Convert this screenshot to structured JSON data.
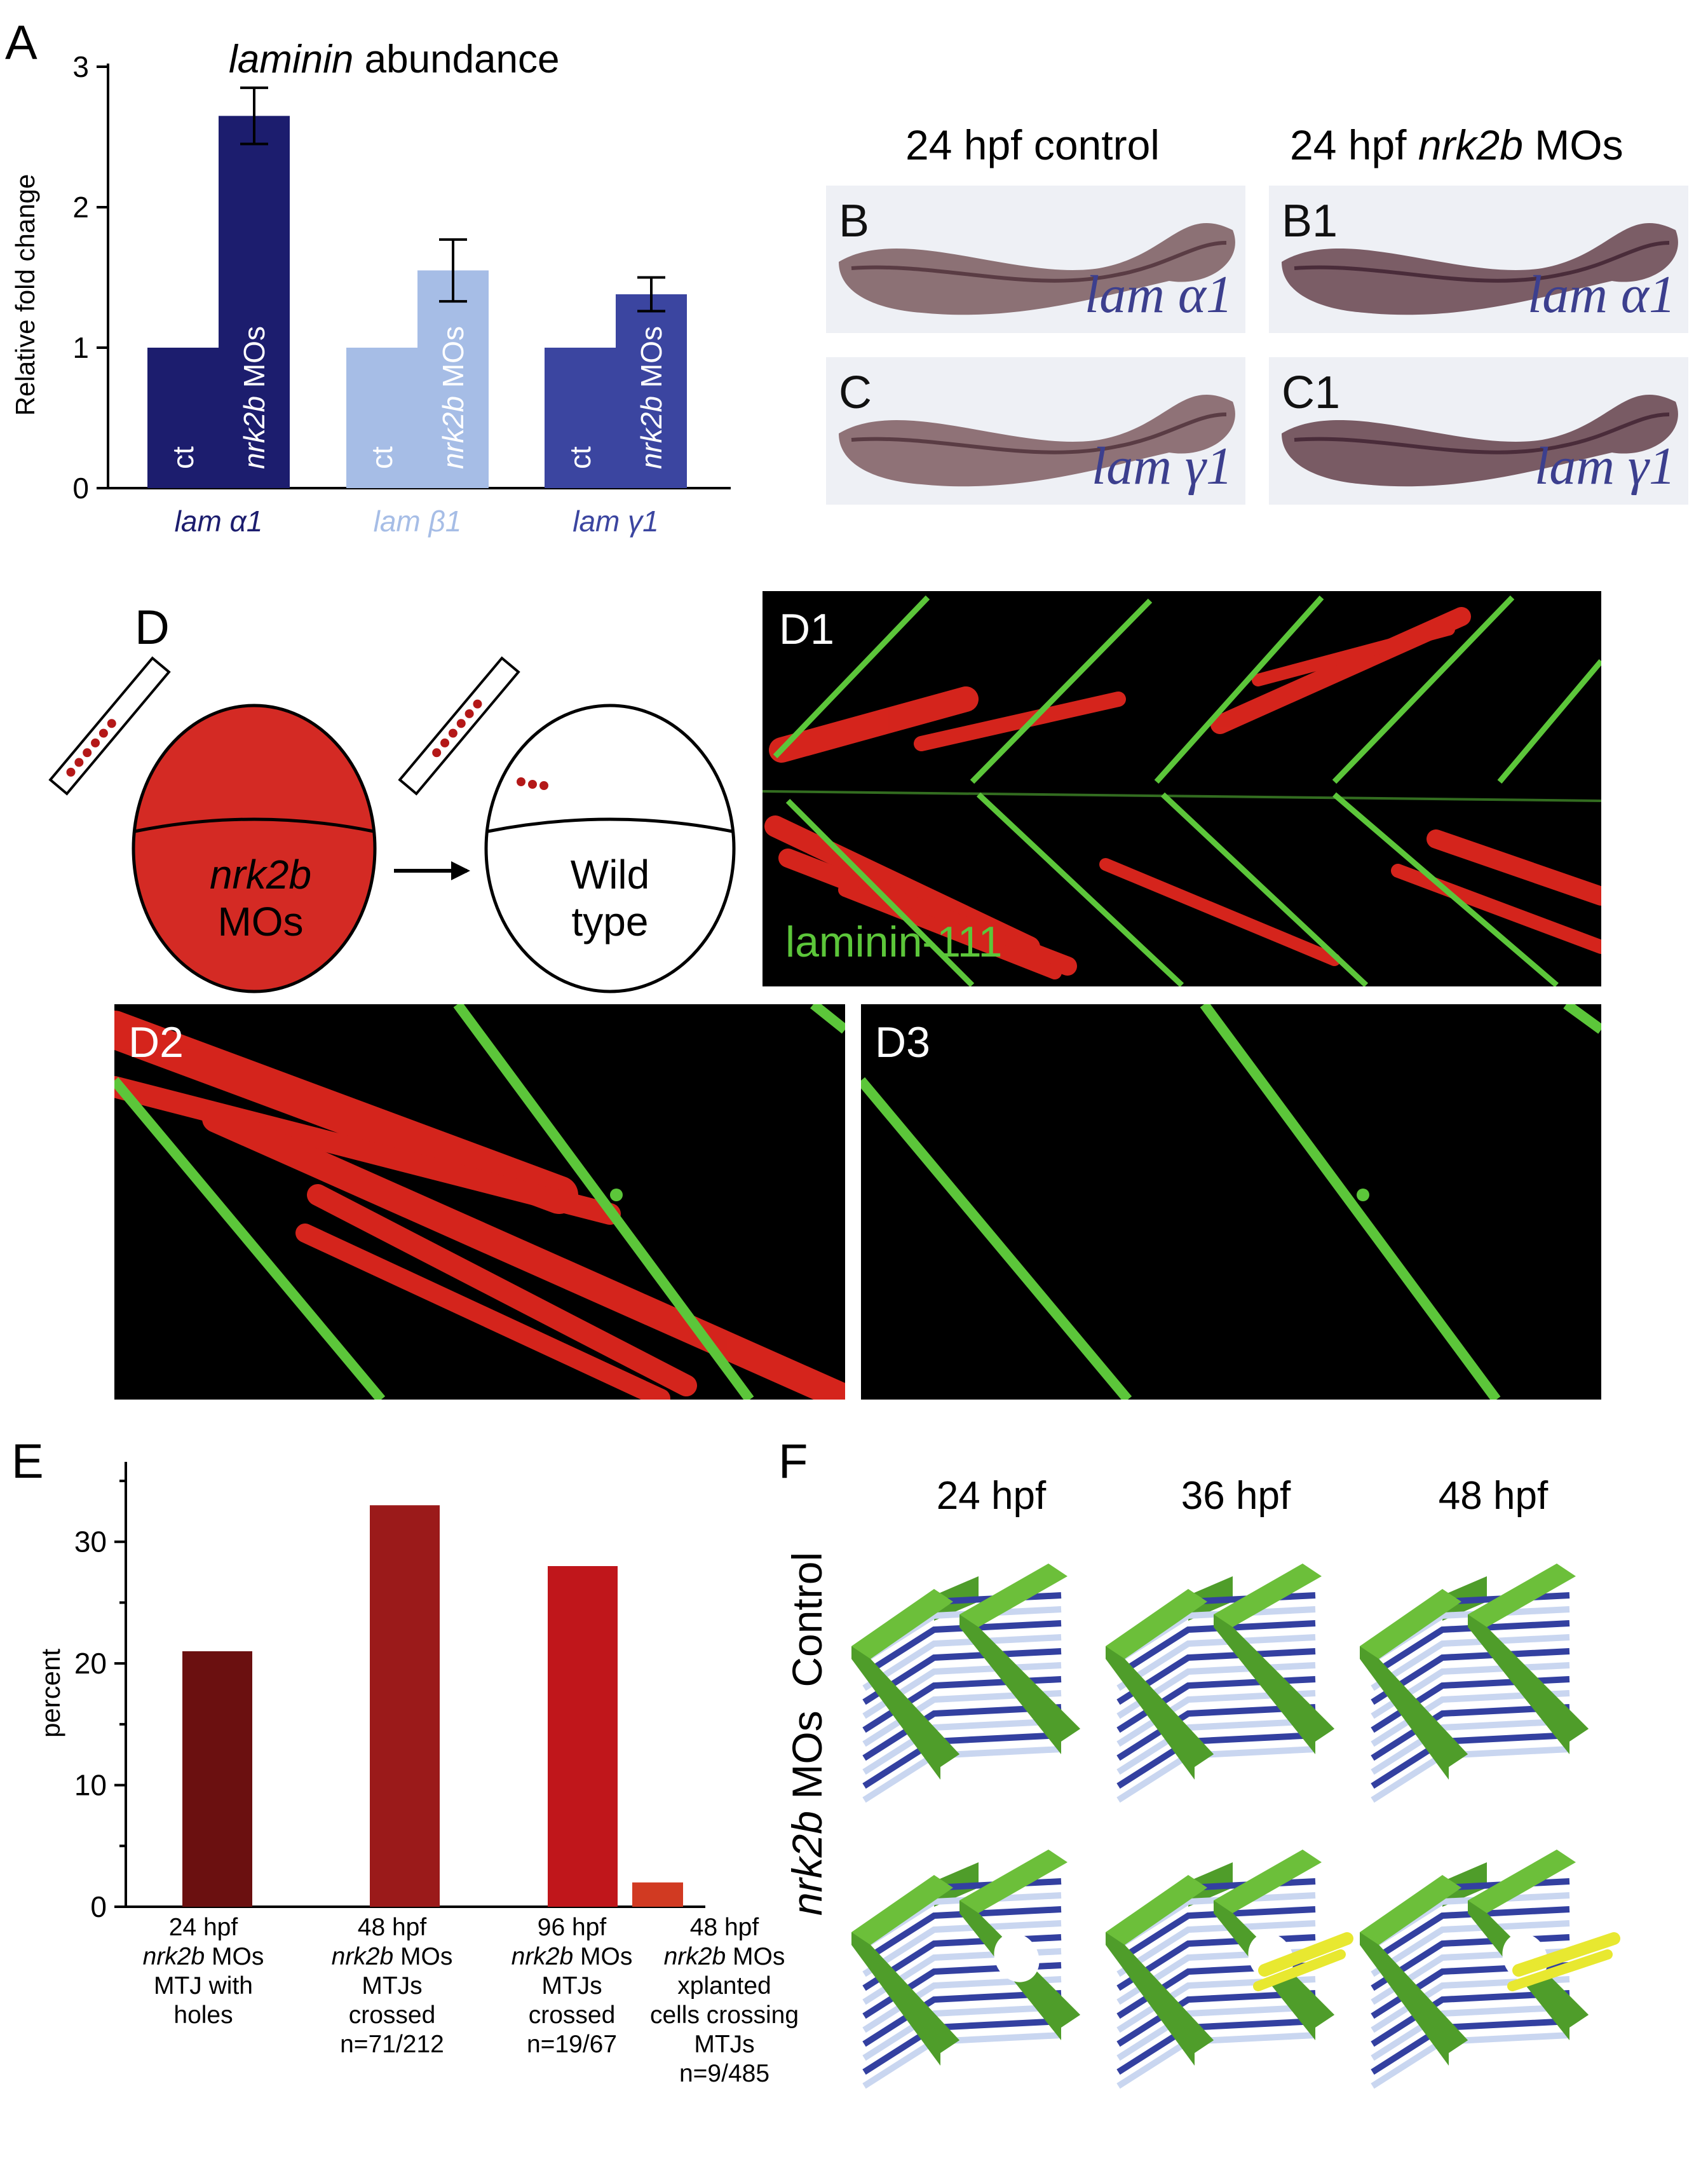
{
  "panel_letters": {
    "a": "A",
    "d": "D",
    "e": "E",
    "f": "F"
  },
  "panel_a": {
    "chart_data": {
      "type": "bar",
      "title_italic": "laminin",
      "title_rest": " abundance",
      "ylabel": "Relative fold change",
      "ylim": [
        0,
        3
      ],
      "yticks": [
        "0",
        "1",
        "2",
        "3"
      ],
      "groups": [
        {
          "label": "lam α1",
          "color": "#1c1d6e",
          "bar_labels": [
            "ct",
            "nrk2b MOs"
          ],
          "values": [
            1.0,
            2.65
          ],
          "error": [
            null,
            0.2
          ]
        },
        {
          "label": "lam β1",
          "color": "#a6bde6",
          "bar_labels": [
            "ct",
            "nrk2b MOs"
          ],
          "values": [
            1.0,
            1.55
          ],
          "error": [
            null,
            0.22
          ]
        },
        {
          "label": "lam γ1",
          "color": "#3b45a0",
          "bar_labels": [
            "ct",
            "nrk2b MOs"
          ],
          "values": [
            1.0,
            1.38
          ],
          "error": [
            null,
            0.12
          ]
        }
      ],
      "bar_label_ct": "ct",
      "bar_label_mo_italic": "nrk2b",
      "bar_label_mo_rest": " MOs"
    }
  },
  "panel_b": {
    "header_control": "24 hpf control",
    "header_mo_prefix": "24 hpf ",
    "header_mo_italic": "nrk2b",
    "header_mo_suffix": " MOs",
    "images": [
      {
        "letter": "B",
        "label": "lam α1"
      },
      {
        "letter": "B1",
        "label": "lam α1"
      },
      {
        "letter": "C",
        "label": "lam γ1"
      },
      {
        "letter": "C1",
        "label": "lam γ1"
      }
    ]
  },
  "panel_d": {
    "donor_italic": "nrk2b",
    "donor_rest": "MOs",
    "host_line1": "Wild",
    "host_line2": "type",
    "d1_letter": "D1",
    "d1_stain": "laminin-111",
    "d2_letter": "D2",
    "d3_letter": "D3",
    "colors": {
      "donor": "#d42a24",
      "laminin": "#5cc63a",
      "muscle": "#e0261e"
    }
  },
  "panel_e": {
    "chart_data": {
      "type": "bar",
      "ylabel": "percent",
      "ylim": [
        0,
        35
      ],
      "yticks": [
        "0",
        "10",
        "20",
        "30"
      ],
      "values": [
        21,
        33,
        28,
        2
      ],
      "colors": [
        "#6b1010",
        "#9b1a1a",
        "#c0161b",
        "#d13a22"
      ],
      "categories": [
        {
          "line1": "24 hpf",
          "line2_italic": "nrk2b",
          "line2_rest": " MOs",
          "line3": "MTJ with",
          "line4": "holes",
          "line5": ""
        },
        {
          "line1": "48 hpf",
          "line2_italic": "nrk2b",
          "line2_rest": " MOs",
          "line3": "MTJs",
          "line4": "crossed",
          "line5": "n=71/212"
        },
        {
          "line1": "96 hpf",
          "line2_italic": "nrk2b",
          "line2_rest": " MOs",
          "line3": "MTJs",
          "line4": "crossed",
          "line5": "n=19/67"
        },
        {
          "line1": "48 hpf",
          "line2_italic": "nrk2b",
          "line2_rest": " MOs",
          "line3": "xplanted",
          "line4": "cells crossing",
          "line5": "MTJs",
          "line6": "n=9/485"
        }
      ]
    }
  },
  "panel_f": {
    "times": [
      "24 hpf",
      "36 hpf",
      "48 hpf"
    ],
    "row_control": "Control",
    "row_mo_italic": "nrk2b",
    "row_mo_rest": " MOs",
    "colors": {
      "boundary": "#6cbf3a",
      "fiber": "#3340a0",
      "gap": "#ffffff",
      "escaping_cell": "#e8e830"
    }
  }
}
